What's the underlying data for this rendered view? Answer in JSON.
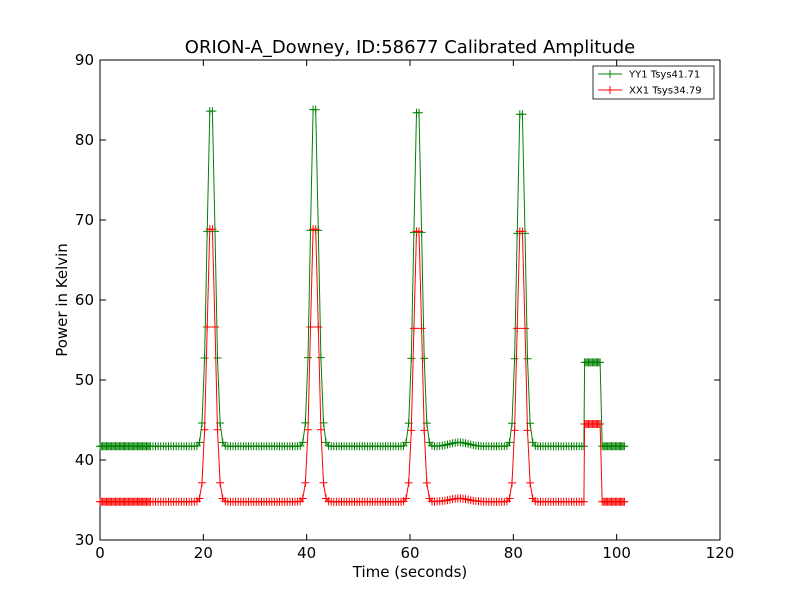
{
  "chart_data": {
    "type": "line",
    "title": "ORION-A_Downey, ID:58677 Calibrated Amplitude",
    "xlabel": "Time (seconds)",
    "ylabel": "Power in Kelvin",
    "xlim": [
      0,
      120
    ],
    "ylim": [
      30,
      90
    ],
    "xticks": [
      0,
      20,
      40,
      60,
      80,
      100,
      120
    ],
    "yticks": [
      30,
      40,
      50,
      60,
      70,
      80,
      90
    ],
    "grid": false,
    "legend_position": "top-right",
    "marker": "+",
    "series": [
      {
        "name": "YY1 Tsys41.71",
        "color": "#008000",
        "baseline": 41.71,
        "peaks": [
          {
            "t": 21.5,
            "value": 86.0
          },
          {
            "t": 41.5,
            "value": 86.2
          },
          {
            "t": 61.5,
            "value": 85.8
          },
          {
            "t": 81.5,
            "value": 85.6
          }
        ],
        "bump": {
          "t": 69.5,
          "value": 42.2
        },
        "plateau": {
          "start": 93.8,
          "end": 97.0,
          "value": 52.2
        },
        "end_t": 101.5
      },
      {
        "name": "XX1 Tsys34.79",
        "color": "#ff0000",
        "baseline": 34.79,
        "peaks": [
          {
            "t": 21.5,
            "value": 70.8
          },
          {
            "t": 41.5,
            "value": 70.8
          },
          {
            "t": 61.5,
            "value": 70.5
          },
          {
            "t": 81.5,
            "value": 70.5
          }
        ],
        "bump": {
          "t": 69.5,
          "value": 35.2
        },
        "plateau": {
          "start": 93.8,
          "end": 97.0,
          "value": 44.5
        },
        "end_t": 101.5
      }
    ]
  }
}
